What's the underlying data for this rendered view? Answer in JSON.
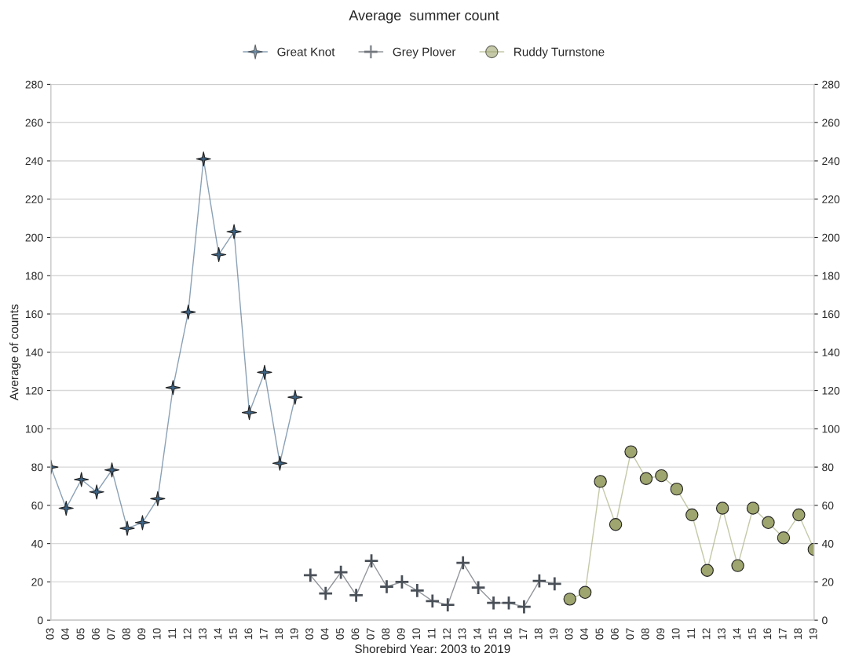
{
  "chart_data": {
    "type": "line",
    "title": "Average  summer count",
    "xlabel": "Shorebird Year: 2003 to 2019",
    "ylabel": "Average of counts",
    "categories": [
      "03",
      "04",
      "05",
      "06",
      "07",
      "08",
      "09",
      "10",
      "11",
      "12",
      "13",
      "14",
      "15",
      "16",
      "17",
      "18",
      "19",
      "03",
      "04",
      "05",
      "06",
      "07",
      "08",
      "09",
      "10",
      "11",
      "12",
      "13",
      "14",
      "15",
      "16",
      "17",
      "18",
      "19",
      "03",
      "04",
      "05",
      "06",
      "07",
      "08",
      "09",
      "10",
      "11",
      "12",
      "13",
      "14",
      "15",
      "16",
      "17",
      "18",
      "19"
    ],
    "series": [
      {
        "name": "Great Knot",
        "color": "#3d6384",
        "marker": "star",
        "values": [
          80,
          58.5,
          73.5,
          67,
          78.5,
          48,
          51,
          63.5,
          121.5,
          161,
          241,
          191,
          203,
          108.5,
          129.5,
          82,
          116.5,
          null,
          null,
          null,
          null,
          null,
          null,
          null,
          null,
          null,
          null,
          null,
          null,
          null,
          null,
          null,
          null,
          null,
          null,
          null,
          null,
          null,
          null,
          null,
          null,
          null,
          null,
          null,
          null,
          null,
          null,
          null,
          null,
          null,
          null
        ]
      },
      {
        "name": "Grey Plover",
        "color": "#4a5058",
        "marker": "cross",
        "values": [
          null,
          null,
          null,
          null,
          null,
          null,
          null,
          null,
          null,
          null,
          null,
          null,
          null,
          null,
          null,
          null,
          null,
          23.5,
          14,
          25,
          13,
          31,
          17.5,
          20,
          15.5,
          10,
          8,
          30,
          17,
          9,
          9,
          7,
          20.5,
          19,
          null,
          null,
          null,
          null,
          null,
          null,
          null,
          null,
          null,
          null,
          null,
          null,
          null,
          null,
          null,
          null,
          null
        ]
      },
      {
        "name": "Ruddy Turnstone",
        "color": "#9fa56e",
        "marker": "circle",
        "values": [
          null,
          null,
          null,
          null,
          null,
          null,
          null,
          null,
          null,
          null,
          null,
          null,
          null,
          null,
          null,
          null,
          null,
          null,
          null,
          null,
          null,
          null,
          null,
          null,
          null,
          null,
          null,
          null,
          null,
          null,
          null,
          null,
          null,
          null,
          11,
          14.5,
          72.5,
          50,
          88,
          74,
          75.5,
          68.5,
          55,
          26,
          58.5,
          28.5,
          58.5,
          51,
          43,
          55,
          37
        ]
      }
    ],
    "ylim": [
      0,
      280
    ],
    "yticks": [
      0,
      20,
      40,
      60,
      80,
      100,
      120,
      140,
      160,
      180,
      200,
      220,
      240,
      260,
      280
    ],
    "y2lim": [
      0,
      280
    ],
    "y2ticks": [
      0,
      20,
      40,
      60,
      80,
      100,
      120,
      140,
      160,
      180,
      200,
      220,
      240,
      260,
      280
    ],
    "grid": "y",
    "legend": "top",
    "line_style": "solid"
  }
}
